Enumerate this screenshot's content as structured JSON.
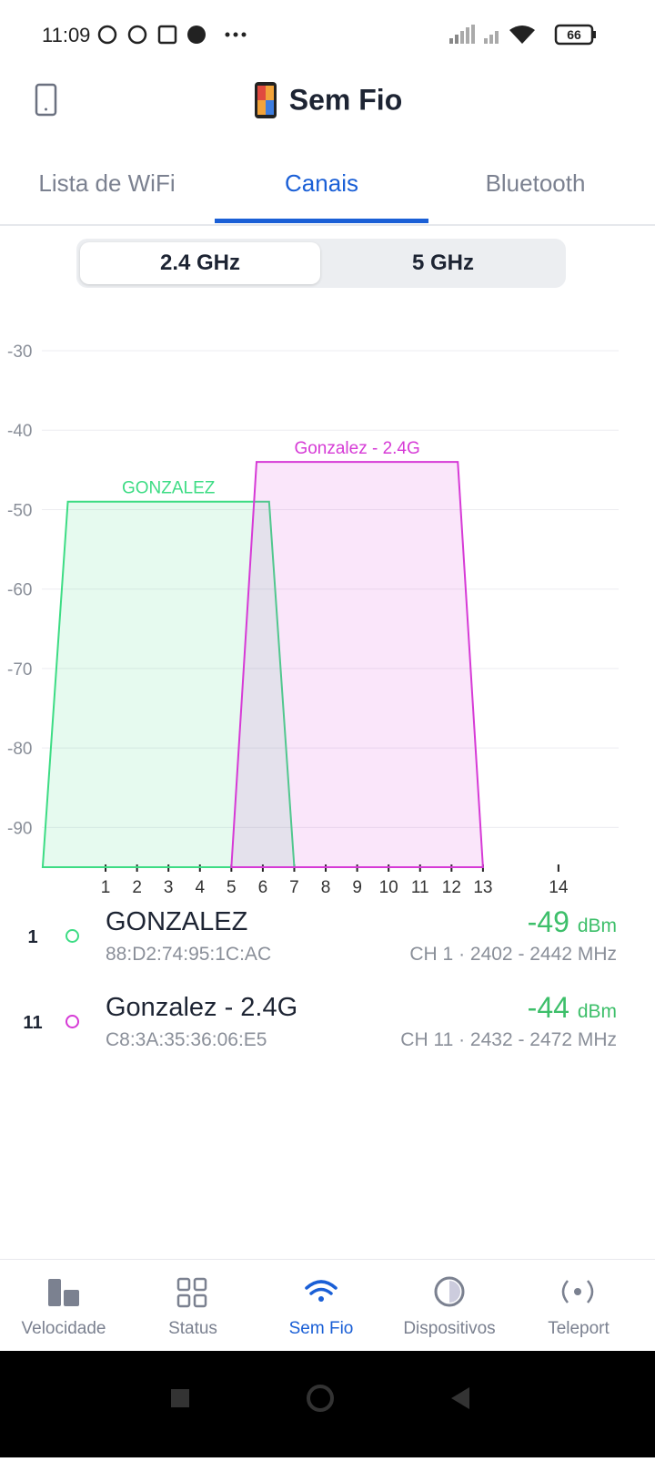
{
  "status_bar": {
    "time": "11:09",
    "battery": "66"
  },
  "header": {
    "title": "Sem Fio"
  },
  "tabs": {
    "items": [
      "Lista de WiFi",
      "Canais",
      "Bluetooth"
    ],
    "active": 1
  },
  "band_toggle": {
    "items": [
      "2.4 GHz",
      "5 GHz"
    ],
    "active": 0
  },
  "chart_data": {
    "type": "area",
    "xlim": [
      2401,
      2494
    ],
    "ylim": [
      -95,
      -30
    ],
    "xticks": [
      {
        "value": 2412,
        "label": "1"
      },
      {
        "value": 2417,
        "label": "2"
      },
      {
        "value": 2422,
        "label": "3"
      },
      {
        "value": 2427,
        "label": "4"
      },
      {
        "value": 2432,
        "label": "5"
      },
      {
        "value": 2437,
        "label": "6"
      },
      {
        "value": 2442,
        "label": "7"
      },
      {
        "value": 2447,
        "label": "8"
      },
      {
        "value": 2452,
        "label": "9"
      },
      {
        "value": 2457,
        "label": "10"
      },
      {
        "value": 2462,
        "label": "11"
      },
      {
        "value": 2467,
        "label": "12"
      },
      {
        "value": 2472,
        "label": "13"
      },
      {
        "value": 2484,
        "label": "14"
      }
    ],
    "yticks": [
      -30,
      -40,
      -50,
      -60,
      -70,
      -80,
      -90
    ],
    "grid": true,
    "series": [
      {
        "name": "GONZALEZ",
        "color": "#3ddc84",
        "x": [
          2402,
          2406,
          2438,
          2442
        ],
        "values": [
          -95,
          -49,
          -49,
          -95
        ]
      },
      {
        "name": "Gonzalez - 2.4G",
        "color": "#d63ad6",
        "x": [
          2432,
          2436,
          2468,
          2472
        ],
        "values": [
          -95,
          -44,
          -44,
          -95
        ]
      }
    ]
  },
  "networks": [
    {
      "channel": "1",
      "name": "GONZALEZ",
      "mac": "88:D2:74:95:1C:AC",
      "signal": "-49",
      "unit": "dBm",
      "detail": "CH 1 · 2402 - 2442 MHz"
    },
    {
      "channel": "11",
      "name": "Gonzalez - 2.4G",
      "mac": "C8:3A:35:36:06:E5",
      "signal": "-44",
      "unit": "dBm",
      "detail": "CH 11 · 2432 - 2472 MHz"
    }
  ],
  "bottom_nav": {
    "items": [
      "Velocidade",
      "Status",
      "Sem Fio",
      "Dispositivos",
      "Teleport"
    ],
    "active": 2
  }
}
